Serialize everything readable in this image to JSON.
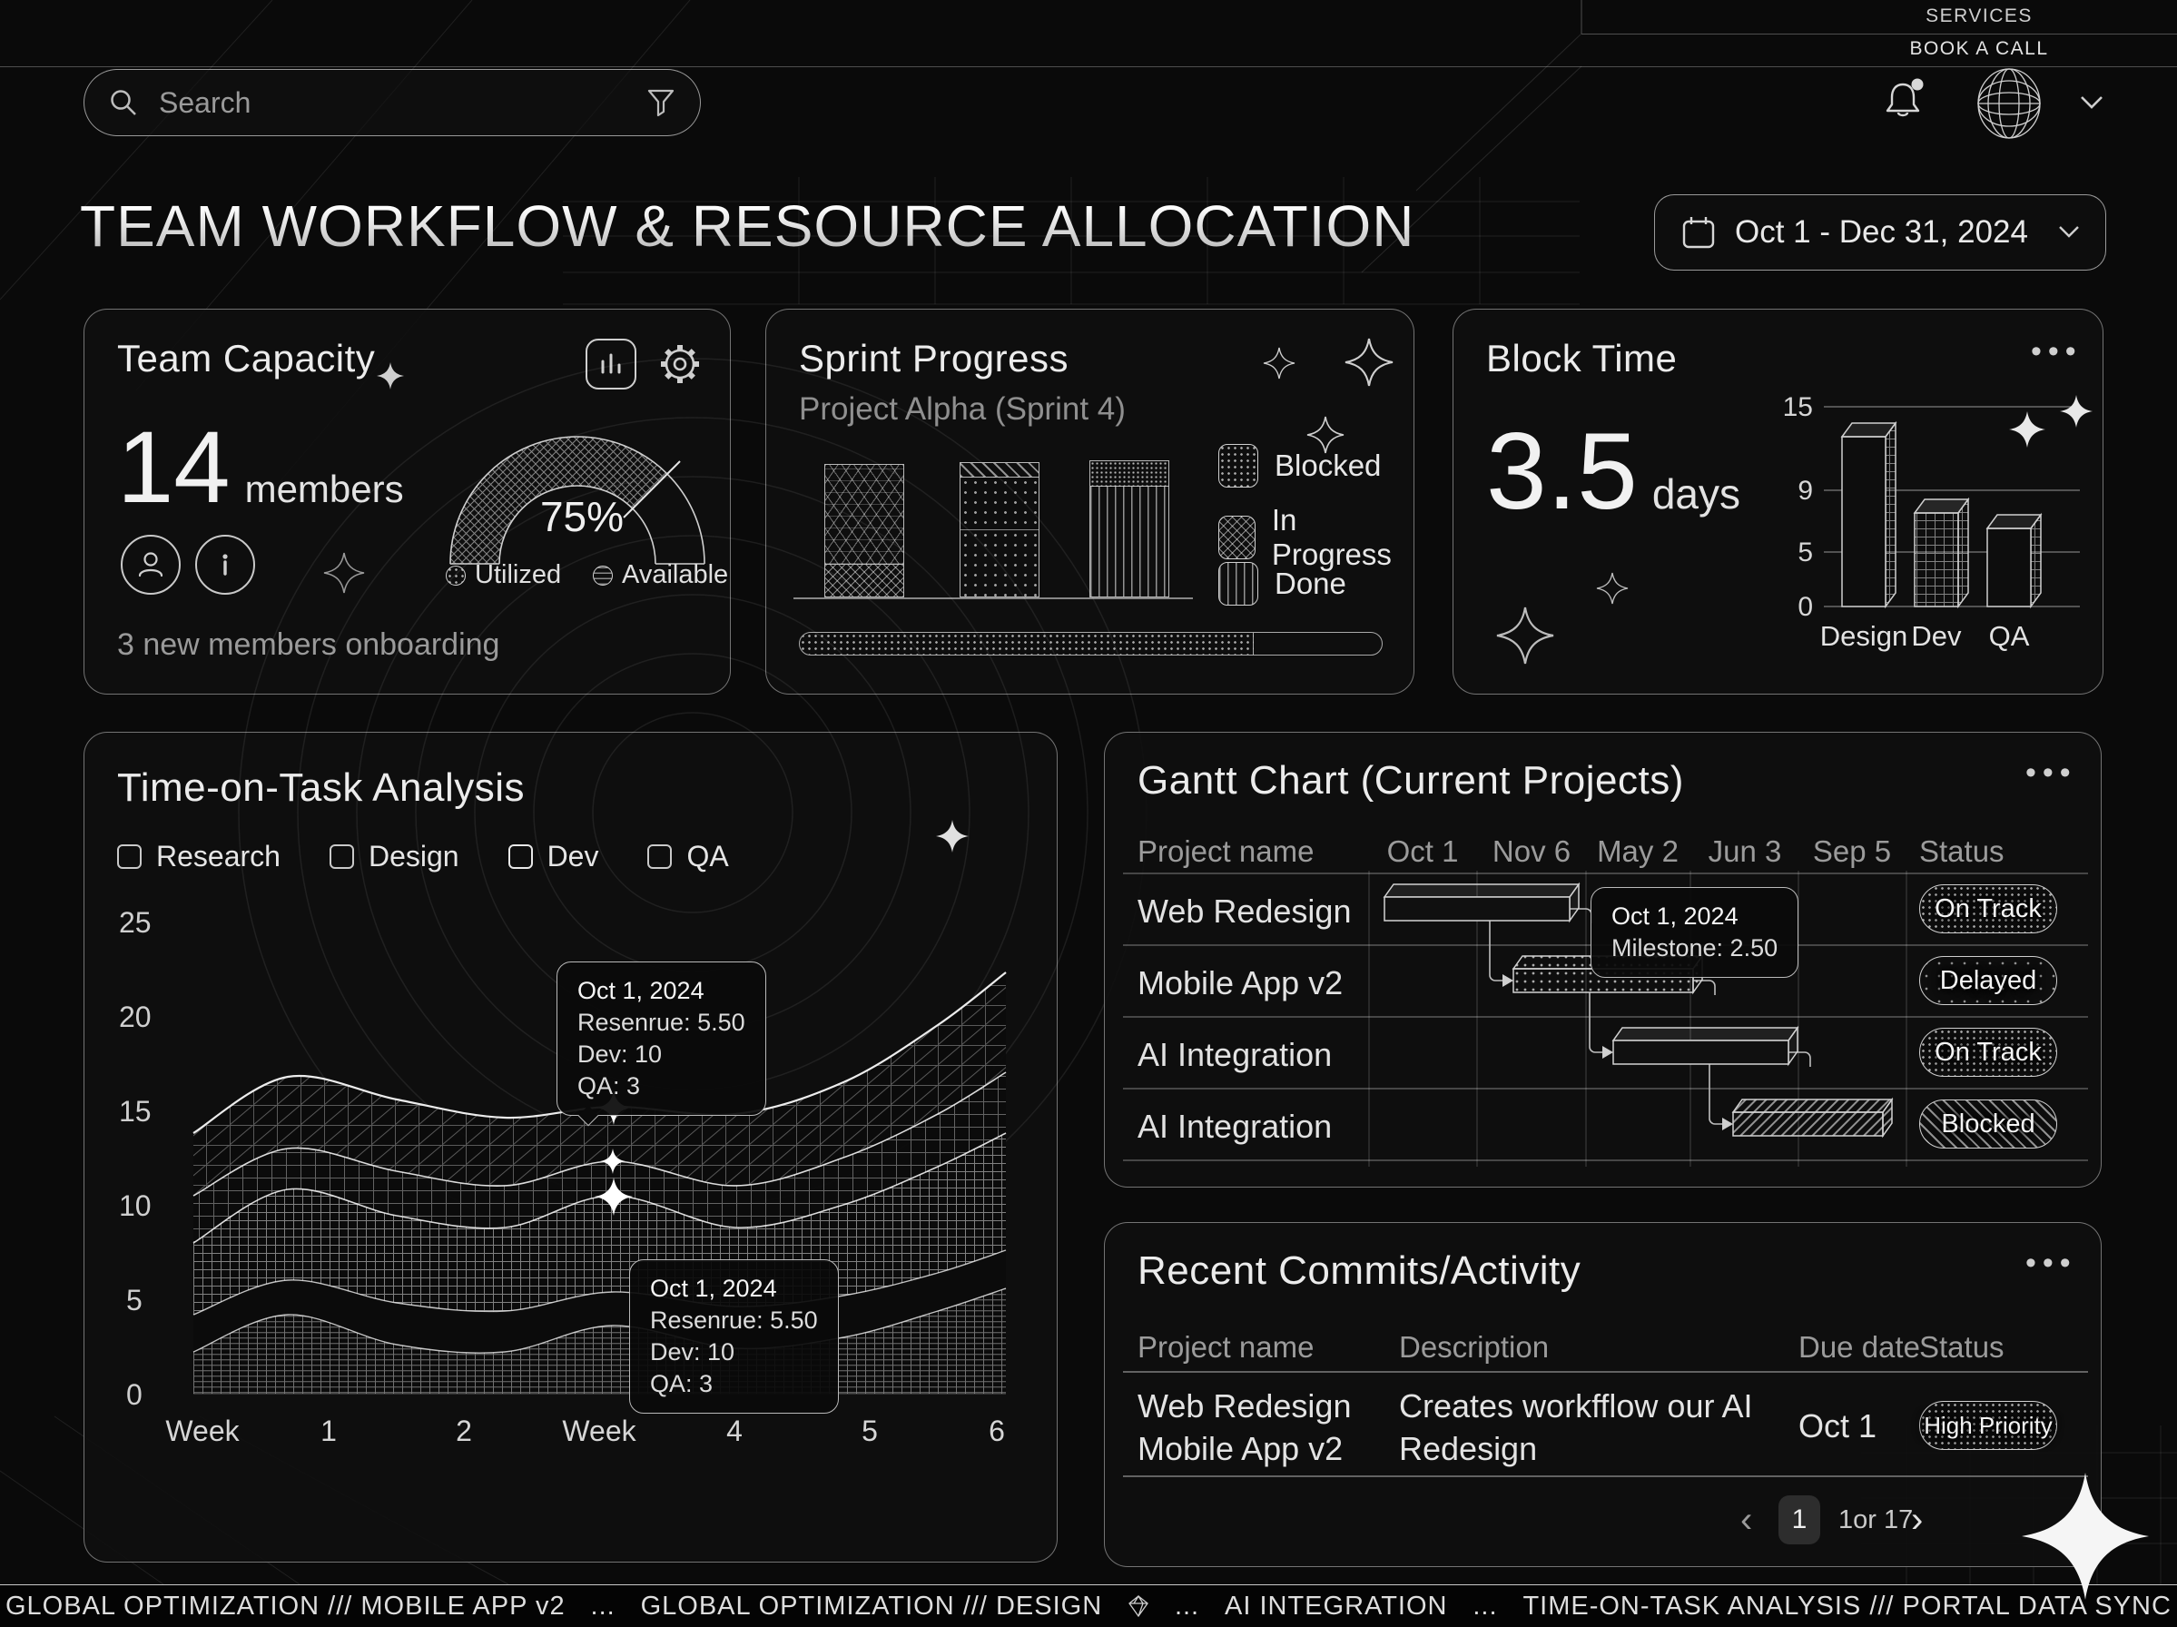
{
  "nav": {
    "services": "SERVICES",
    "book_call": "BOOK A CALL",
    "search_placeholder": "Search"
  },
  "header": {
    "title": "TEAM WORKFLOW & RESOURCE ALLOCATION",
    "date_range": "Oct 1 - Dec 31, 2024"
  },
  "team_capacity": {
    "title": "Team Capacity",
    "members_value": "14",
    "members_label": "members",
    "utilization": "75%",
    "legend": {
      "utilized": "Utilized",
      "available": "Available"
    },
    "footnote": "3 new members onboarding"
  },
  "sprint_progress": {
    "title": "Sprint Progress",
    "subtitle": "Project Alpha (Sprint 4)",
    "legend": {
      "blocked": "Blocked",
      "in_progress": "In Progress",
      "done": "Done"
    },
    "progress_pct": 78
  },
  "block_time": {
    "title": "Block Time",
    "value": "3.5",
    "unit": "days",
    "chart_data": {
      "type": "bar",
      "categories": [
        "Design",
        "Dev",
        "QA"
      ],
      "values": [
        13,
        7.5,
        6.5
      ],
      "yticks": [
        "15",
        "9",
        "5",
        "0"
      ]
    }
  },
  "time_on_task": {
    "title": "Time-on-Task Analysis",
    "filters": [
      {
        "label": "Research",
        "checked": false
      },
      {
        "label": "Design",
        "checked": false
      },
      {
        "label": "Dev",
        "checked": true
      },
      {
        "label": "QA",
        "checked": false
      }
    ],
    "chart_data": {
      "type": "area",
      "yticks": [
        "25",
        "20",
        "15",
        "10",
        "5",
        "0"
      ],
      "xticks": [
        "Week",
        "1",
        "2",
        "Week",
        "4",
        "5",
        "6"
      ],
      "series": [
        {
          "name": "ridge-1",
          "values": [
            13.8,
            16.5,
            14.9,
            15.2,
            14.8,
            18.9,
            22.3
          ]
        },
        {
          "name": "ridge-2",
          "values": [
            10.5,
            12.9,
            11.2,
            12.3,
            11.0,
            14.0,
            17.0
          ]
        },
        {
          "name": "ridge-3",
          "values": [
            8.0,
            10.6,
            9.0,
            10.5,
            8.9,
            11.6,
            13.8
          ]
        },
        {
          "name": "ridge-4",
          "values": [
            4.2,
            5.8,
            4.5,
            5.4,
            4.6,
            6.2,
            7.6
          ]
        },
        {
          "name": "ridge-5",
          "values": [
            2.2,
            3.9,
            2.3,
            3.6,
            2.5,
            4.2,
            5.6
          ]
        }
      ]
    },
    "tooltip_lines": [
      "Oct 1, 2024",
      "Resenrue: 5.50",
      "Dev: 10",
      "QA: 3"
    ]
  },
  "gantt": {
    "title": "Gantt Chart (Current Projects)",
    "columns": [
      "Project name",
      "Oct 1",
      "Nov 6",
      "May 2",
      "Jun 3",
      "Sep 5",
      "Status"
    ],
    "rows": [
      {
        "name": "Web Redesign",
        "status": "On Track",
        "span": [
          "Oct 1",
          "Nov 6"
        ]
      },
      {
        "name": "Mobile App v2",
        "status": "Delayed",
        "span": [
          "Nov 6",
          "May 2"
        ]
      },
      {
        "name": "AI Integration",
        "status": "On Track",
        "span": [
          "May 2",
          "Jun 3"
        ]
      },
      {
        "name": "AI Integration",
        "status": "Blocked",
        "span": [
          "Jun 3",
          "Sep 5"
        ]
      }
    ],
    "tooltip": {
      "line1": "Oct 1, 2024",
      "line2": "Milestone: 2.50"
    }
  },
  "commits": {
    "title": "Recent Commits/Activity",
    "columns": [
      "Project name",
      "Description",
      "Due date",
      "Status"
    ],
    "rows": [
      {
        "project": "Web Redesign Mobile App v2",
        "description": "Creates workfflow our AI Redesign",
        "due": "Oct 1",
        "status": "High Priority"
      }
    ],
    "pagination": {
      "prev": "‹",
      "current": "1",
      "label": "1or 17",
      "next": "›"
    }
  },
  "ticker": {
    "separator": "...",
    "segments": [
      "GLOBAL OPTIMIZATION /// MOBILE APP v2",
      "GLOBAL OPTIMIZATION /// DESIGN",
      "AI INTEGRATION",
      "TIME-ON-TASK ANALYSIS /// PORTAL DATA SYNC"
    ]
  }
}
